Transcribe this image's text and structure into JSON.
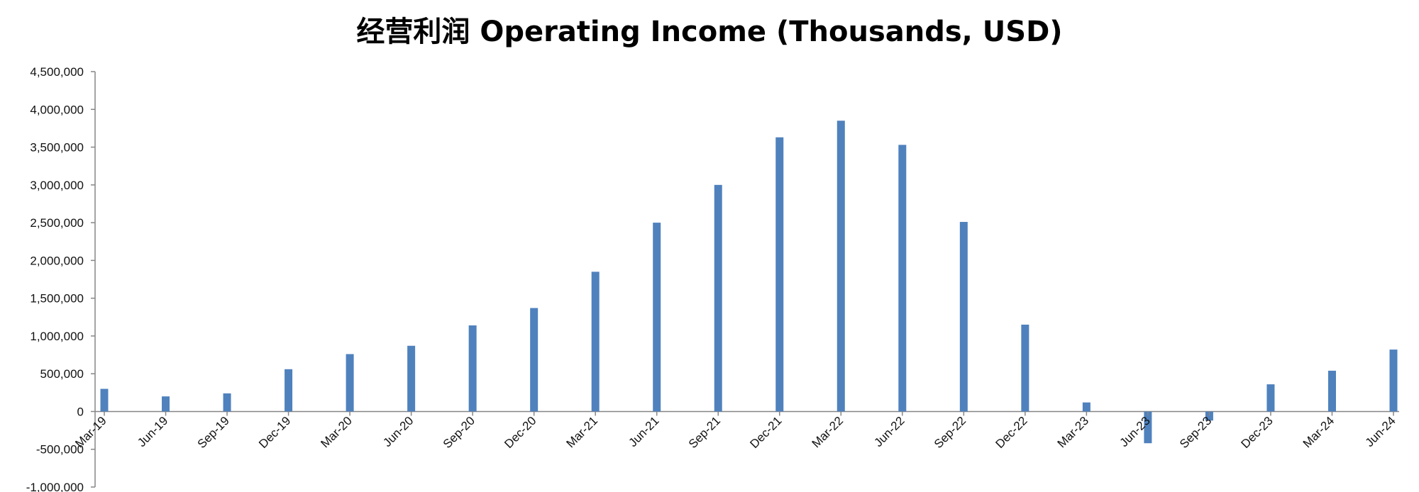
{
  "chart_data": {
    "type": "bar",
    "title": "经营利润 Operating Income (Thousands, USD)",
    "xlabel": "",
    "ylabel": "",
    "ylim": [
      -1000000,
      4500000
    ],
    "y_ticks": [
      {
        "value": 4500000,
        "label": "4,500,000"
      },
      {
        "value": 4000000,
        "label": "4,000,000"
      },
      {
        "value": 3500000,
        "label": "3,500,000"
      },
      {
        "value": 3000000,
        "label": "3,000,000"
      },
      {
        "value": 2500000,
        "label": "2,500,000"
      },
      {
        "value": 2000000,
        "label": "2,000,000"
      },
      {
        "value": 1500000,
        "label": "1,500,000"
      },
      {
        "value": 1000000,
        "label": "1,000,000"
      },
      {
        "value": 500000,
        "label": "500,000"
      },
      {
        "value": 0,
        "label": "0"
      },
      {
        "value": -500000,
        "label": "-500,000"
      },
      {
        "value": -1000000,
        "label": "-1,000,000"
      }
    ],
    "categories": [
      "Mar-19",
      "Jun-19",
      "Sep-19",
      "Dec-19",
      "Mar-20",
      "Jun-20",
      "Sep-20",
      "Dec-20",
      "Mar-21",
      "Jun-21",
      "Sep-21",
      "Dec-21",
      "Mar-22",
      "Jun-22",
      "Sep-22",
      "Dec-22",
      "Mar-23",
      "Jun-23",
      "Sep-23",
      "Dec-23",
      "Mar-24",
      "Jun-24"
    ],
    "values": [
      300000,
      200000,
      240000,
      560000,
      760000,
      870000,
      1140000,
      1370000,
      1850000,
      2500000,
      3000000,
      3630000,
      3850000,
      3530000,
      2510000,
      1150000,
      120000,
      -420000,
      -120000,
      360000,
      540000,
      820000
    ],
    "bar_color": "#4f81bd",
    "grid": false,
    "legend": "none"
  }
}
